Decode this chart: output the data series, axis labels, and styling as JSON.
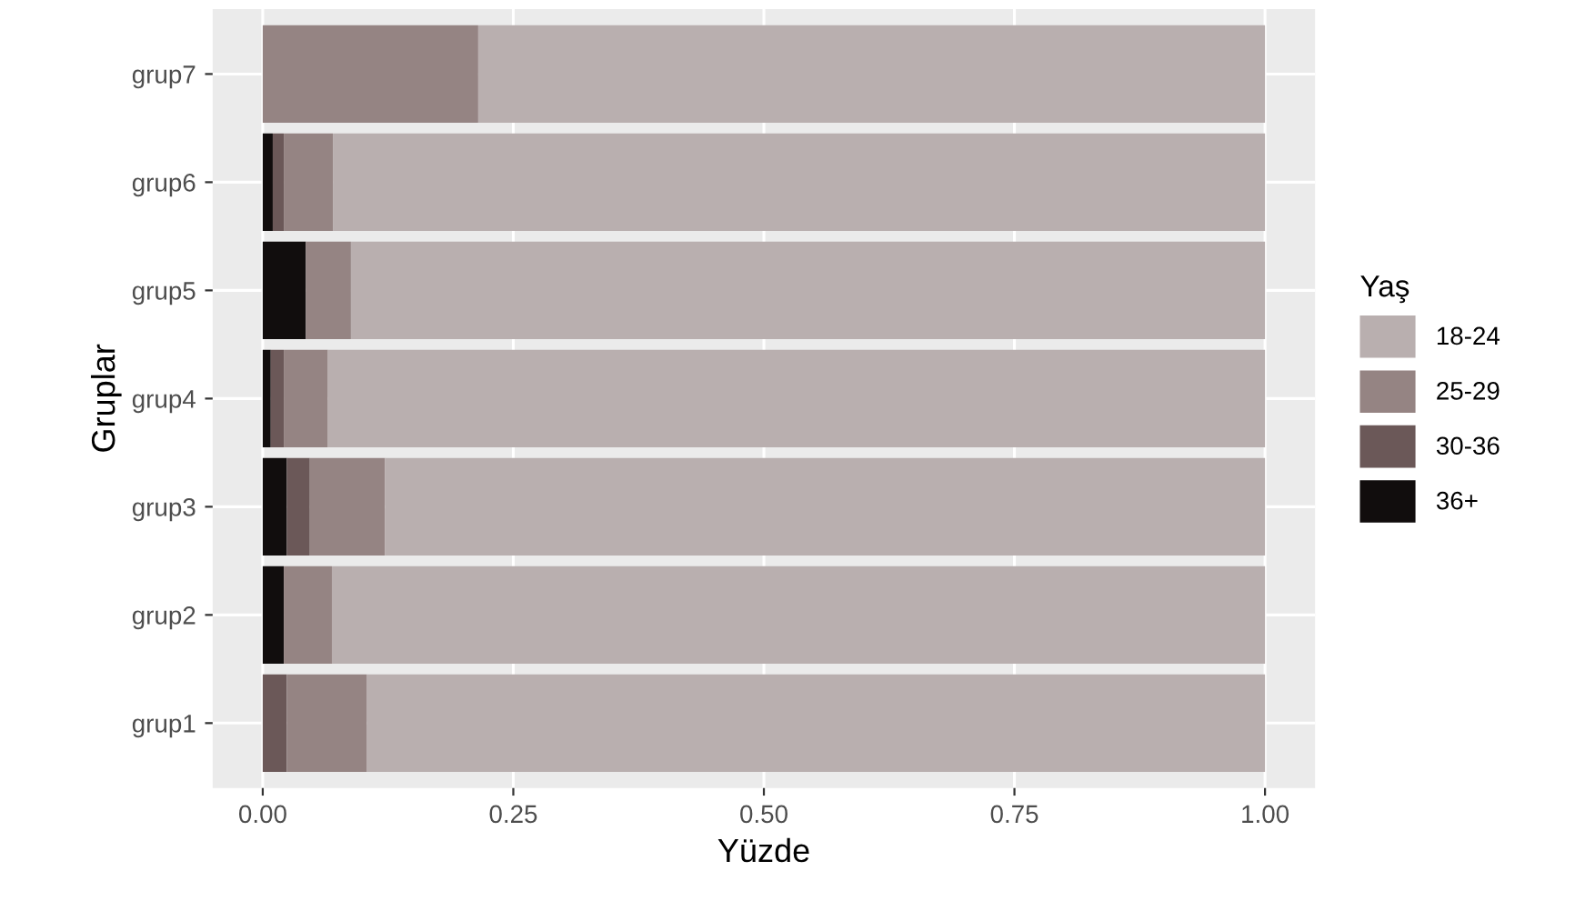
{
  "chart_data": {
    "type": "bar",
    "orientation": "horizontal",
    "stacked": true,
    "xlabel": "Yüzde",
    "ylabel": "Gruplar",
    "legend_title": "Yaş",
    "legend": "right",
    "grid": true,
    "categories": [
      "grup7",
      "grup6",
      "grup5",
      "grup4",
      "grup3",
      "grup2",
      "grup1"
    ],
    "xlim": [
      -0.05,
      1.05
    ],
    "xticks": [
      {
        "value": 0,
        "label": "0.00"
      },
      {
        "value": 0.25,
        "label": "0.25"
      },
      {
        "value": 0.5,
        "label": "0.50"
      },
      {
        "value": 0.75,
        "label": "0.75"
      },
      {
        "value": 1,
        "label": "1.00"
      }
    ],
    "series": [
      {
        "name": "36+",
        "color": "#110d0d",
        "values": [
          0,
          0.01,
          0.043,
          0.008,
          0.024,
          0.021,
          0
        ]
      },
      {
        "name": "30-36",
        "color": "#6b5858",
        "values": [
          0,
          0.011,
          0,
          0.013,
          0.023,
          0,
          0.024
        ]
      },
      {
        "name": "25-29",
        "color": "#958483",
        "values": [
          0.215,
          0.049,
          0.045,
          0.044,
          0.075,
          0.048,
          0.08
        ]
      },
      {
        "name": "18-24",
        "color": "#b9afaf",
        "values": [
          0.785,
          0.93,
          0.912,
          0.935,
          0.878,
          0.931,
          0.896
        ]
      }
    ]
  }
}
